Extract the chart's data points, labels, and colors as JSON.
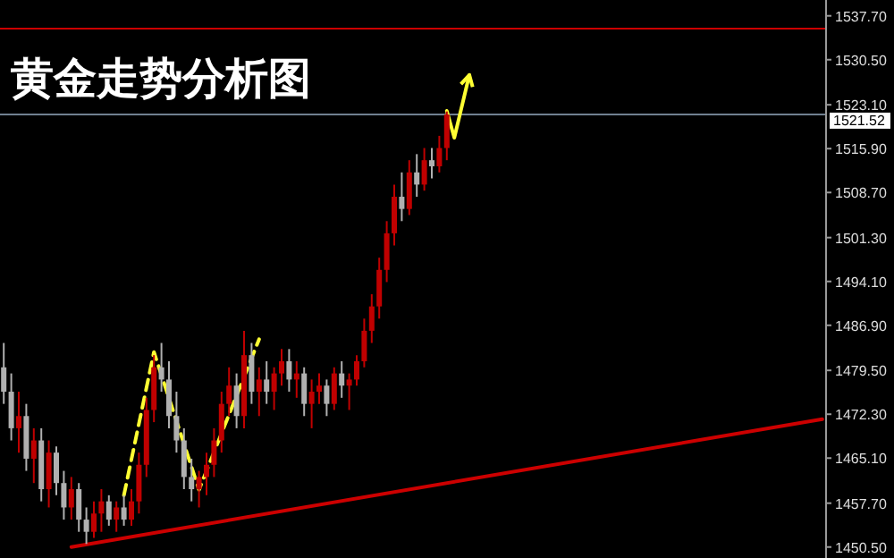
{
  "chart_data": {
    "type": "candlestick",
    "title": "黄金走势分析图",
    "categories": [
      null,
      null,
      null,
      null,
      null,
      null,
      null,
      null,
      null,
      null,
      null,
      null,
      null,
      null,
      null,
      null,
      null,
      null,
      null,
      null,
      null,
      null,
      null,
      null,
      null,
      null,
      null,
      null,
      null,
      null,
      null,
      null,
      null,
      null,
      null,
      null,
      null,
      null,
      null,
      null,
      null,
      null,
      null,
      null,
      null,
      null,
      null,
      null,
      null,
      null,
      null,
      null,
      null,
      null,
      null,
      null,
      null,
      null,
      null,
      null,
      null,
      null,
      null,
      null,
      null,
      null,
      null,
      null,
      null,
      null,
      null,
      null,
      null,
      null,
      null,
      null,
      null,
      null,
      null,
      null,
      null,
      null,
      null,
      null,
      null,
      null,
      null,
      null,
      null,
      null,
      null,
      null,
      null,
      null,
      null,
      null,
      null,
      null,
      null,
      null,
      null,
      null,
      null,
      null,
      null,
      null,
      null,
      null,
      null,
      null
    ],
    "ohlc": [
      [
        1480,
        1484,
        1474,
        1476
      ],
      [
        1476,
        1479,
        1468,
        1470
      ],
      [
        1470,
        1476,
        1466,
        1472
      ],
      [
        1472,
        1474,
        1463,
        1465
      ],
      [
        1465,
        1470,
        1461,
        1468
      ],
      [
        1468,
        1470,
        1458,
        1460
      ],
      [
        1460,
        1468,
        1457,
        1466
      ],
      [
        1466,
        1467,
        1459,
        1461
      ],
      [
        1461,
        1463,
        1455,
        1457
      ],
      [
        1457,
        1462,
        1455,
        1460
      ],
      [
        1460,
        1461,
        1453,
        1455
      ],
      [
        1455,
        1457,
        1451,
        1453
      ],
      [
        1453,
        1458,
        1452,
        1456
      ],
      [
        1456,
        1460,
        1453,
        1458
      ],
      [
        1458,
        1459,
        1454,
        1455
      ],
      [
        1455,
        1458,
        1453,
        1457
      ],
      [
        1457,
        1459,
        1454,
        1455
      ],
      [
        1455,
        1460,
        1454,
        1458
      ],
      [
        1458,
        1466,
        1456,
        1464
      ],
      [
        1464,
        1475,
        1462,
        1473
      ],
      [
        1473,
        1482,
        1471,
        1480
      ],
      [
        1480,
        1484,
        1476,
        1478
      ],
      [
        1478,
        1481,
        1470,
        1472
      ],
      [
        1472,
        1476,
        1466,
        1468
      ],
      [
        1468,
        1470,
        1460,
        1462
      ],
      [
        1462,
        1465,
        1458,
        1460
      ],
      [
        1460,
        1463,
        1457,
        1462
      ],
      [
        1462,
        1466,
        1459,
        1464
      ],
      [
        1464,
        1470,
        1462,
        1468
      ],
      [
        1468,
        1476,
        1466,
        1474
      ],
      [
        1474,
        1480,
        1472,
        1477
      ],
      [
        1477,
        1479,
        1470,
        1472
      ],
      [
        1472,
        1486,
        1470,
        1482
      ],
      [
        1482,
        1484,
        1474,
        1476
      ],
      [
        1476,
        1480,
        1472,
        1478
      ],
      [
        1478,
        1481,
        1474,
        1476
      ],
      [
        1476,
        1480,
        1473,
        1479
      ],
      [
        1479,
        1483,
        1477,
        1481
      ],
      [
        1481,
        1483,
        1476,
        1478
      ],
      [
        1478,
        1481,
        1475,
        1479
      ],
      [
        1479,
        1480,
        1472,
        1474
      ],
      [
        1474,
        1478,
        1470,
        1476
      ],
      [
        1476,
        1479,
        1474,
        1477
      ],
      [
        1477,
        1478,
        1472,
        1474
      ],
      [
        1474,
        1480,
        1473,
        1479
      ],
      [
        1479,
        1481,
        1475,
        1477
      ],
      [
        1477,
        1479,
        1473,
        1478
      ],
      [
        1478,
        1482,
        1477,
        1481
      ],
      [
        1481,
        1488,
        1480,
        1486
      ],
      [
        1486,
        1492,
        1484,
        1490
      ],
      [
        1490,
        1498,
        1488,
        1496
      ],
      [
        1496,
        1504,
        1494,
        1502
      ],
      [
        1502,
        1510,
        1500,
        1508
      ],
      [
        1508,
        1512,
        1504,
        1506
      ],
      [
        1506,
        1514,
        1505,
        1512
      ],
      [
        1512,
        1515,
        1508,
        1510
      ],
      [
        1510,
        1516,
        1509,
        1514
      ],
      [
        1514,
        1516,
        1511,
        1513
      ],
      [
        1513,
        1518,
        1512,
        1516
      ],
      [
        1516,
        1522,
        1514,
        1521.5
      ],
      null,
      null,
      null,
      null,
      null,
      null,
      null,
      null,
      null,
      null,
      null,
      null,
      null,
      null,
      null,
      null,
      null,
      null,
      null,
      null,
      null,
      null,
      null,
      null,
      null,
      null,
      null,
      null,
      null,
      null,
      null,
      null,
      null,
      null,
      null,
      null,
      null,
      null,
      null,
      null,
      null,
      null,
      null,
      null,
      null,
      null,
      null,
      null,
      null,
      null
    ],
    "colors": [
      "#b0b0b0",
      "#b0b0b0",
      "#c00000",
      "#b0b0b0",
      "#c00000",
      "#b0b0b0",
      "#c00000",
      "#b0b0b0",
      "#b0b0b0",
      "#c00000",
      "#b0b0b0",
      "#b0b0b0",
      "#c00000",
      "#c00000",
      "#b0b0b0",
      "#c00000",
      "#b0b0b0",
      "#c00000",
      "#c00000",
      "#c00000",
      "#c00000",
      "#b0b0b0",
      "#b0b0b0",
      "#b0b0b0",
      "#b0b0b0",
      "#b0b0b0",
      "#c00000",
      "#c00000",
      "#c00000",
      "#c00000",
      "#c00000",
      "#b0b0b0",
      "#c00000",
      "#b0b0b0",
      "#c00000",
      "#b0b0b0",
      "#c00000",
      "#c00000",
      "#b0b0b0",
      "#c00000",
      "#b0b0b0",
      "#c00000",
      "#c00000",
      "#b0b0b0",
      "#c00000",
      "#b0b0b0",
      "#c00000",
      "#c00000",
      "#c00000",
      "#c00000",
      "#c00000",
      "#c00000",
      "#c00000",
      "#b0b0b0",
      "#c00000",
      "#b0b0b0",
      "#c00000",
      "#b0b0b0",
      "#c00000",
      "#c00000",
      null,
      null,
      null,
      null,
      null,
      null,
      null,
      null,
      null,
      null,
      null,
      null,
      null,
      null,
      null,
      null,
      null,
      null,
      null,
      null,
      null,
      null,
      null,
      null,
      null,
      null,
      null,
      null,
      null,
      null,
      null,
      null,
      null,
      null,
      null,
      null,
      null,
      null,
      null,
      null,
      null,
      null,
      null,
      null,
      null,
      null,
      null,
      null,
      null,
      null
    ],
    "series": [
      {
        "type": "line",
        "color": "#cc0000",
        "values": [
          null,
          null,
          null,
          null,
          null,
          null,
          null,
          null,
          null,
          1450.5,
          null,
          null,
          null,
          null,
          null,
          null,
          null,
          null,
          null,
          null,
          null,
          null,
          null,
          null,
          null,
          null,
          null,
          null,
          null,
          null,
          null,
          null,
          null,
          null,
          null,
          null,
          null,
          null,
          null,
          null,
          null,
          null,
          null,
          null,
          null,
          null,
          null,
          null,
          null,
          null,
          null,
          null,
          null,
          null,
          null,
          null,
          null,
          null,
          null,
          null,
          null,
          null,
          null,
          null,
          null,
          null,
          null,
          null,
          null,
          null,
          null,
          null,
          null,
          null,
          null,
          null,
          null,
          null,
          null,
          null,
          null,
          null,
          null,
          null,
          null,
          null,
          null,
          null,
          null,
          null,
          null,
          null,
          null,
          null,
          null,
          null,
          null,
          null,
          null,
          null,
          null,
          null,
          null,
          null,
          null,
          null,
          null,
          null,
          null,
          1471.5
        ]
      },
      {
        "type": "line",
        "color": "#ffff33",
        "line_style": "dashed",
        "values": [
          null,
          null,
          null,
          null,
          null,
          null,
          null,
          null,
          null,
          null,
          null,
          null,
          null,
          null,
          null,
          null,
          1459.0,
          null,
          null,
          null,
          1482.5,
          null,
          null,
          null,
          null,
          null,
          1459.9,
          null,
          null,
          null,
          null,
          null,
          null,
          null,
          1484.6,
          null,
          null,
          null,
          null,
          null,
          null,
          null,
          null,
          null,
          null,
          null,
          null,
          null,
          null,
          null,
          null,
          null,
          null,
          null,
          null,
          null,
          null,
          null,
          null,
          null,
          null,
          null,
          null,
          null,
          null,
          null,
          null,
          null,
          null,
          null,
          null,
          null,
          null,
          null,
          null,
          null,
          null,
          null,
          null,
          null,
          null,
          null,
          null,
          null,
          null,
          null,
          null,
          null,
          null,
          null,
          null,
          null,
          null,
          null,
          null,
          null,
          null,
          null,
          null,
          null,
          null,
          null,
          null,
          null,
          null,
          null,
          null,
          null,
          null,
          null
        ]
      },
      {
        "type": "line",
        "color": "#ffff33",
        "line_style": "solid",
        "values": [
          null,
          null,
          null,
          null,
          null,
          null,
          null,
          null,
          null,
          null,
          null,
          null,
          null,
          null,
          null,
          null,
          null,
          null,
          null,
          null,
          null,
          null,
          null,
          null,
          null,
          null,
          null,
          null,
          null,
          null,
          null,
          null,
          null,
          null,
          null,
          null,
          null,
          null,
          null,
          null,
          null,
          null,
          null,
          null,
          null,
          null,
          null,
          null,
          null,
          null,
          null,
          null,
          null,
          null,
          null,
          null,
          null,
          null,
          null,
          1522.1,
          1517.7,
          null,
          1528.0,
          null,
          null,
          null,
          null,
          null,
          null,
          null,
          null,
          null,
          null,
          null,
          null,
          null,
          null,
          null,
          null,
          null,
          null,
          null,
          null,
          null,
          null,
          null,
          null,
          null,
          null,
          null,
          null,
          null,
          null,
          null,
          null,
          null,
          null,
          null,
          null,
          null,
          null,
          null,
          null,
          null,
          null,
          null,
          null,
          null,
          null,
          null
        ]
      }
    ],
    "ylim": [
      1448.7,
      1540.3
    ],
    "yticks": [
      {
        "value": 1450.5,
        "label": "1450.50"
      },
      {
        "value": 1457.7,
        "label": "1457.70"
      },
      {
        "value": 1465.1,
        "label": "1465.10"
      },
      {
        "value": 1472.3,
        "label": "1472.30"
      },
      {
        "value": 1479.5,
        "label": "1479.50"
      },
      {
        "value": 1486.9,
        "label": "1486.90"
      },
      {
        "value": 1494.1,
        "label": "1494.10"
      },
      {
        "value": 1501.3,
        "label": "1501.30"
      },
      {
        "value": 1508.7,
        "label": "1508.70"
      },
      {
        "value": 1515.9,
        "label": "1515.90"
      },
      {
        "value": 1523.1,
        "label": "1523.10"
      },
      {
        "value": 1530.5,
        "label": "1530.50"
      },
      {
        "value": 1537.7,
        "label": "1537.70"
      }
    ],
    "ref_lines": [
      {
        "axis": "y",
        "value": 1535.6,
        "color": "#cc0000"
      },
      {
        "axis": "y",
        "value": 1521.52,
        "label": "1521.52",
        "color": "#708090"
      }
    ],
    "grid": false
  }
}
